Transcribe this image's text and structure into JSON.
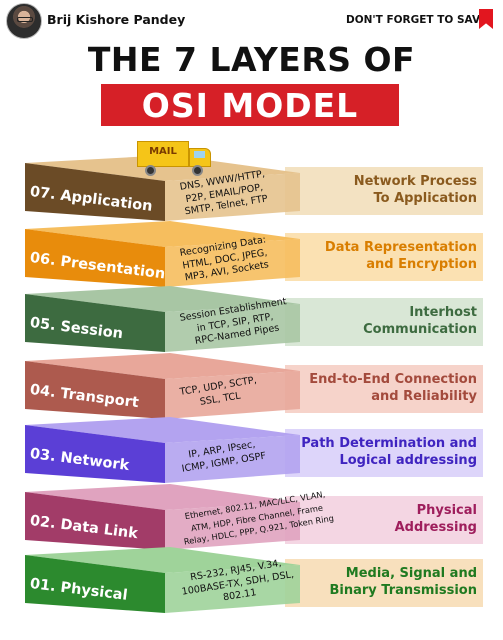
{
  "header": {
    "author": "Brij Kishore Pandey",
    "save_label": "DON'T FORGET TO SAVE"
  },
  "title": {
    "line1": "THE 7 LAYERS OF",
    "line2": "OSI MODEL"
  },
  "truck_label": "MAIL",
  "layers": [
    {
      "name": "07. Application",
      "protocols": [
        "DNS, WWW/HTTP,",
        "P2P, EMAIL/POP,",
        "SMTP, Telnet, FTP"
      ],
      "description": [
        "Network Process",
        "To Application"
      ],
      "side_color": "#6b4b26",
      "top_color": "#e6c38e",
      "right_color": "#f3e2c2",
      "desc_color": "#8a5a1e"
    },
    {
      "name": "06. Presentation",
      "protocols": [
        "Recognizing Data:",
        "HTML, DOC, JPEG,",
        "MP3, AVI, Sockets"
      ],
      "description": [
        "Data Representation",
        "and Encryption"
      ],
      "side_color": "#e88c0c",
      "top_color": "#f6be5e",
      "right_color": "#fbe1b2",
      "desc_color": "#d97e00"
    },
    {
      "name": "05. Session",
      "protocols": [
        "Session Establishment",
        "in TCP, SIP, RTP,",
        "RPC-Named Pipes"
      ],
      "description": [
        "Interhost",
        "Communication"
      ],
      "side_color": "#3d6b40",
      "top_color": "#a8c6a4",
      "right_color": "#d9e7d6",
      "desc_color": "#3d6b40"
    },
    {
      "name": "04. Transport",
      "protocols": [
        "TCP, UDP, SCTP,",
        "SSL, TCL"
      ],
      "description": [
        "End-to-End Connection",
        "and Reliability"
      ],
      "side_color": "#ad5a4e",
      "top_color": "#e8a79a",
      "right_color": "#f6d3ca",
      "desc_color": "#a34a3c"
    },
    {
      "name": "03. Network",
      "protocols": [
        "IP, ARP, IPsec,",
        "ICMP, IGMP, OSPF"
      ],
      "description": [
        "Path Determination and",
        "Logical addressing"
      ],
      "side_color": "#5b3fd6",
      "top_color": "#b3a3f0",
      "right_color": "#ddd5fa",
      "desc_color": "#3f24c0"
    },
    {
      "name": "02. Data Link",
      "protocols": [
        "Ethernet, 802.11, MAC/LLC, VLAN,",
        "ATM, HDP, Fibre Channel, Frame",
        "Relay, HDLC, PPP, Q.921, Token Ring"
      ],
      "description": [
        "Physical",
        "Addressing"
      ],
      "side_color": "#a23c68",
      "top_color": "#e0a3bf",
      "right_color": "#f4d6e3",
      "desc_color": "#9e1e5c"
    },
    {
      "name": "01. Physical",
      "protocols": [
        "RS-232, RJ45, V.34,",
        "100BASE-TX, SDH, DSL,",
        "802.11"
      ],
      "description": [
        "Media, Signal and",
        "Binary Transmission"
      ],
      "side_color": "#2c8a2e",
      "top_color": "#9fd39a",
      "right_color": "#f8e0bd",
      "desc_color": "#1f7a20"
    }
  ]
}
